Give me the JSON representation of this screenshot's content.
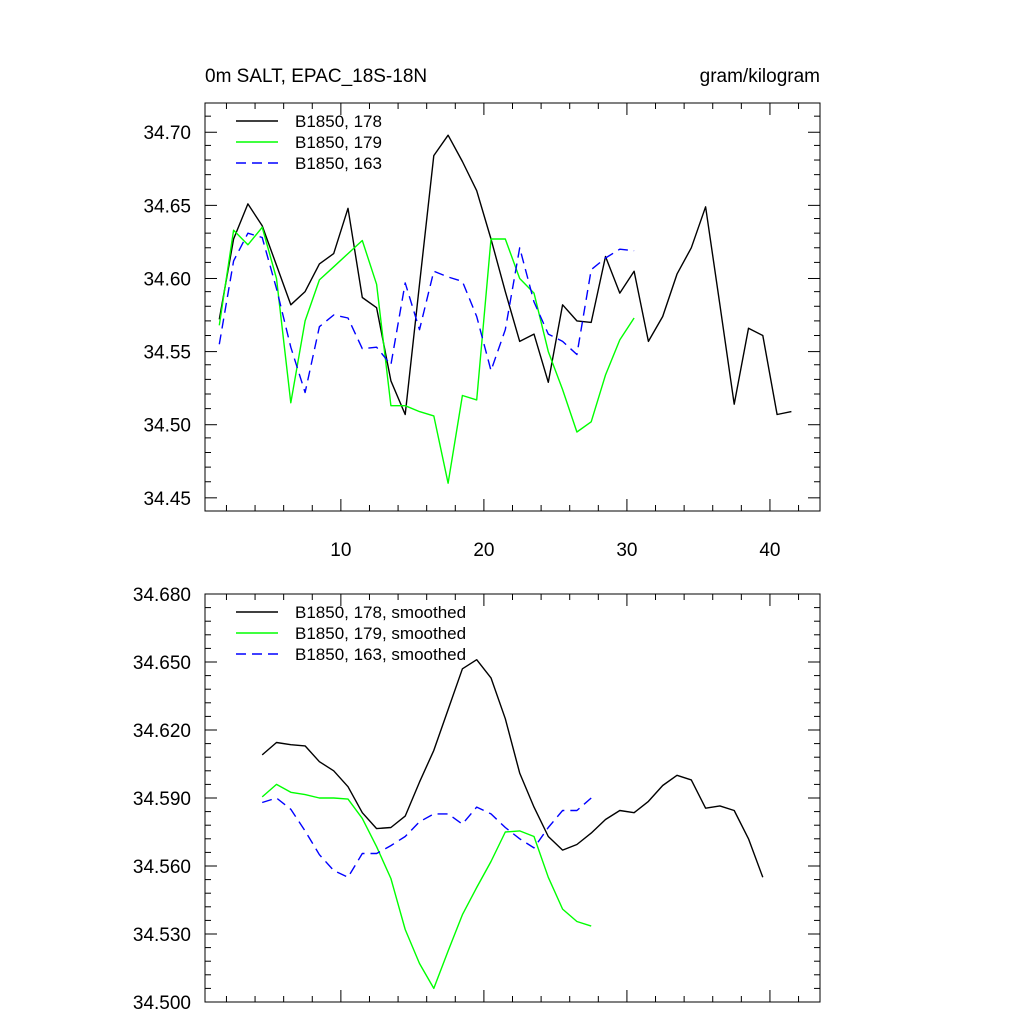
{
  "header": {
    "left_title": "0m SALT, EPAC_18S-18N",
    "right_title": "gram/kilogram"
  },
  "chart_data": [
    {
      "type": "line",
      "title": "0m SALT, EPAC_18S-18N",
      "units": "gram/kilogram",
      "xlim": [
        0.5,
        43.5
      ],
      "ylim": [
        34.441,
        34.72
      ],
      "x_ticks": [
        10,
        20,
        30,
        40
      ],
      "x_tick_labels": [
        "10",
        "20",
        "30",
        "40"
      ],
      "y_ticks": [
        34.45,
        34.5,
        34.55,
        34.6,
        34.65,
        34.7
      ],
      "y_tick_labels": [
        "34.45",
        "34.50",
        "34.55",
        "34.60",
        "34.65",
        "34.70"
      ],
      "legend_position": "top-left",
      "series": [
        {
          "name": "B1850, 178",
          "color": "#000000",
          "dash": "solid",
          "x_start": 1.5,
          "values": [
            34.572,
            34.627,
            34.651,
            34.636,
            34.609,
            34.582,
            34.591,
            34.61,
            34.617,
            34.648,
            34.587,
            34.58,
            34.53,
            34.507,
            34.596,
            34.684,
            34.698,
            34.68,
            34.66,
            34.627,
            34.591,
            34.557,
            34.562,
            34.529,
            34.582,
            34.571,
            34.57,
            34.615,
            34.59,
            34.605,
            34.557,
            34.574,
            34.603,
            34.621,
            34.649,
            34.582,
            34.514,
            34.566,
            34.561,
            34.507,
            34.509
          ]
        },
        {
          "name": "B1850, 179",
          "color": "#00ff00",
          "dash": "solid",
          "x_start": 1.5,
          "values": [
            34.568,
            34.633,
            34.623,
            34.635,
            34.6,
            34.515,
            34.571,
            34.599,
            34.608,
            34.617,
            34.626,
            34.596,
            34.513,
            34.513,
            34.509,
            34.506,
            34.46,
            34.52,
            34.517,
            34.627,
            34.627,
            34.6,
            34.59,
            34.55,
            34.524,
            34.495,
            34.502,
            34.534,
            34.558,
            34.573
          ]
        },
        {
          "name": "B1850, 163",
          "color": "#0000ff",
          "dash": "dashed",
          "x_start": 1.5,
          "values": [
            34.555,
            34.612,
            34.631,
            34.628,
            34.593,
            34.553,
            34.522,
            34.567,
            34.575,
            34.573,
            34.552,
            34.553,
            34.541,
            34.597,
            34.565,
            34.605,
            34.601,
            34.598,
            34.574,
            34.537,
            34.565,
            34.621,
            34.584,
            34.562,
            34.557,
            34.548,
            34.606,
            34.614,
            34.62,
            34.619
          ]
        }
      ]
    },
    {
      "type": "line",
      "xlim": [
        0.5,
        43.5
      ],
      "ylim": [
        34.5,
        34.68
      ],
      "x_ticks": [
        10,
        20,
        30,
        40
      ],
      "y_ticks": [
        34.5,
        34.53,
        34.56,
        34.59,
        34.62,
        34.65,
        34.68
      ],
      "y_tick_labels": [
        "34.500",
        "34.530",
        "34.560",
        "34.590",
        "34.620",
        "34.650",
        "34.680"
      ],
      "legend_position": "top-left",
      "series": [
        {
          "name": "B1850, 178, smoothed",
          "color": "#000000",
          "dash": "solid",
          "x_start": 4.5,
          "values": [
            34.609,
            34.6145,
            34.6135,
            34.613,
            34.606,
            34.602,
            34.595,
            34.5835,
            34.5765,
            34.577,
            34.582,
            34.597,
            34.611,
            34.629,
            34.647,
            34.651,
            34.643,
            34.625,
            34.601,
            34.586,
            34.573,
            34.567,
            34.5695,
            34.5745,
            34.5805,
            34.5845,
            34.5835,
            34.5885,
            34.5955,
            34.6,
            34.598,
            34.5855,
            34.5865,
            34.5845,
            34.572,
            34.555
          ]
        },
        {
          "name": "B1850, 179, smoothed",
          "color": "#00ff00",
          "dash": "solid",
          "x_start": 4.5,
          "values": [
            34.5905,
            34.596,
            34.5925,
            34.5915,
            34.59,
            34.59,
            34.5895,
            34.581,
            34.5685,
            34.5545,
            34.532,
            34.517,
            34.506,
            34.5225,
            34.5385,
            34.5505,
            34.562,
            34.575,
            34.5755,
            34.573,
            34.555,
            34.541,
            34.5355,
            34.5335
          ]
        },
        {
          "name": "B1850, 163, smoothed",
          "color": "#0000ff",
          "dash": "dashed",
          "x_start": 4.5,
          "values": [
            34.588,
            34.59,
            34.585,
            34.5755,
            34.565,
            34.558,
            34.555,
            34.5655,
            34.5655,
            34.569,
            34.573,
            34.5795,
            34.583,
            34.583,
            34.5785,
            34.586,
            34.583,
            34.577,
            34.572,
            34.568,
            34.577,
            34.5845,
            34.5845,
            34.59
          ]
        }
      ]
    }
  ]
}
